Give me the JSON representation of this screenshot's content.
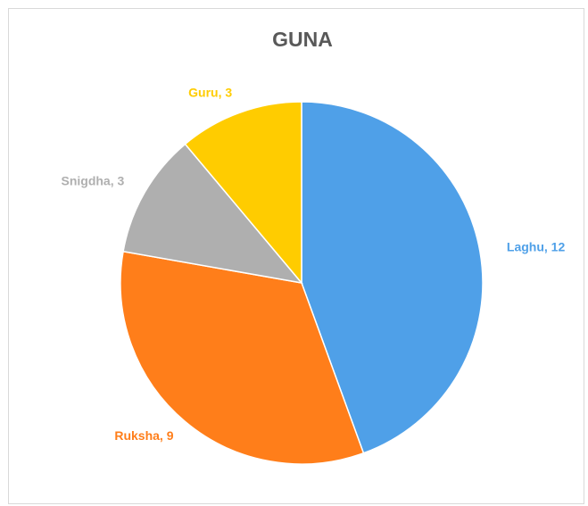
{
  "chart_data": {
    "type": "pie",
    "title": "GUNA",
    "categories": [
      "Laghu",
      "Ruksha",
      "Snigdha",
      "Guru"
    ],
    "values": [
      12,
      9,
      3,
      3
    ],
    "labels": [
      "Laghu, 12",
      "Ruksha, 9",
      "Snigdha, 3",
      "Guru, 3"
    ],
    "colors": [
      "#4FA0E8",
      "#FF7E1A",
      "#AFAFAF",
      "#FFCC00"
    ],
    "legend": "none",
    "start_angle": "12 o'clock",
    "direction": "clockwise"
  }
}
